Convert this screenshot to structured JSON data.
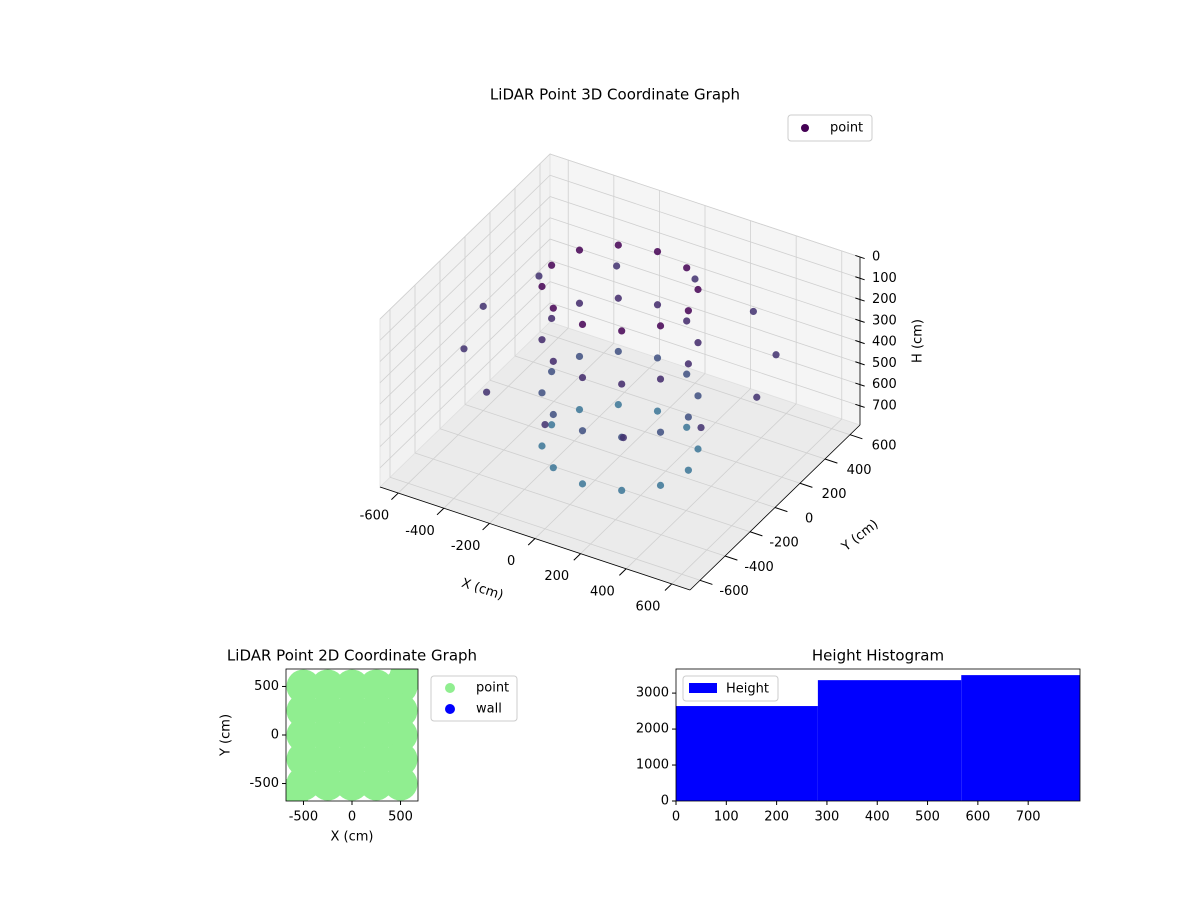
{
  "chart_data": [
    {
      "type": "scatter3d",
      "title": "LiDAR Point 3D Coordinate Graph",
      "x_label": "X (cm)",
      "y_label": "Y (cm)",
      "z_label": "H (cm)",
      "xlim": [
        -680,
        680
      ],
      "ylim": [
        -680,
        680
      ],
      "zlim": [
        0,
        790
      ],
      "z_inverted": true,
      "xticks": [
        -600,
        -400,
        -200,
        0,
        200,
        400,
        600
      ],
      "yticks": [
        -600,
        -400,
        -200,
        0,
        200,
        400,
        600
      ],
      "zticks": [
        0,
        100,
        200,
        300,
        400,
        500,
        600,
        700
      ],
      "legend": "upper right",
      "series": [
        {
          "name": "point",
          "color": "#440154",
          "colormap": [
            "#440154",
            "#3b7c99"
          ],
          "x": [
            300,
            260,
            150,
            0,
            -150,
            -260,
            -300,
            -260,
            -150,
            0,
            150,
            260,
            300,
            260,
            150,
            0,
            -150,
            -260,
            -300,
            -260,
            -150,
            0,
            150,
            260,
            300,
            260,
            150,
            0,
            -150,
            -260,
            -300,
            -260,
            -150,
            0,
            150,
            260,
            300,
            260,
            150,
            0,
            -150,
            -260,
            -300,
            -260,
            -150,
            0,
            150,
            260,
            600,
            520,
            300,
            0,
            -300,
            -520,
            -600,
            -520,
            -300,
            0,
            300,
            520
          ],
          "y": [
            0,
            150,
            260,
            300,
            260,
            150,
            0,
            -150,
            -260,
            -300,
            -260,
            -150,
            0,
            150,
            260,
            300,
            260,
            150,
            0,
            -150,
            -260,
            -300,
            -260,
            -150,
            0,
            150,
            260,
            300,
            260,
            150,
            0,
            -150,
            -260,
            -300,
            -260,
            -150,
            0,
            150,
            260,
            300,
            260,
            150,
            0,
            -150,
            -260,
            -300,
            -260,
            -150,
            0,
            300,
            520,
            600,
            520,
            300,
            0,
            -300,
            -520,
            -600,
            -520,
            -300
          ],
          "z": [
            0,
            0,
            0,
            0,
            0,
            0,
            0,
            0,
            0,
            0,
            0,
            0,
            250,
            250,
            250,
            250,
            250,
            250,
            250,
            250,
            250,
            250,
            250,
            250,
            500,
            500,
            500,
            500,
            500,
            500,
            500,
            500,
            500,
            500,
            500,
            500,
            750,
            750,
            750,
            750,
            750,
            750,
            750,
            750,
            750,
            750,
            750,
            750,
            300,
            300,
            300,
            300,
            300,
            300,
            300,
            300,
            300,
            300,
            300,
            300
          ]
        }
      ]
    },
    {
      "type": "scatter",
      "title": "LiDAR Point 2D Coordinate Graph",
      "x_label": "X (cm)",
      "y_label": "Y (cm)",
      "xlim": [
        -680,
        680
      ],
      "ylim": [
        -680,
        680
      ],
      "xticks": [
        -500,
        0,
        500
      ],
      "yticks": [
        -500,
        0,
        500
      ],
      "legend": "outside right",
      "series": [
        {
          "name": "point",
          "color": "#90ee90",
          "x": [
            -500,
            -250,
            0,
            250,
            500,
            -500,
            -250,
            0,
            250,
            500,
            -500,
            -250,
            0,
            250,
            500,
            -500,
            -250,
            0,
            250,
            500,
            -500,
            -250,
            0,
            250,
            500,
            620,
            560,
            -620
          ],
          "y": [
            500,
            500,
            500,
            500,
            500,
            250,
            250,
            250,
            250,
            250,
            0,
            0,
            0,
            0,
            0,
            -250,
            -250,
            -250,
            -250,
            -250,
            -500,
            -500,
            -500,
            -500,
            -500,
            640,
            600,
            -620
          ]
        },
        {
          "name": "wall",
          "color": "#0000ff",
          "x": [],
          "y": []
        }
      ]
    },
    {
      "type": "histogram",
      "title": "Height Histogram",
      "bins": [
        0,
        282,
        567,
        803
      ],
      "series": [
        {
          "name": "Height",
          "color": "#0000ff",
          "values": [
            2640,
            3360,
            3500
          ]
        }
      ],
      "xlim": [
        0,
        803
      ],
      "ylim": [
        0,
        3670
      ],
      "xticks": [
        0,
        100,
        200,
        300,
        400,
        500,
        600,
        700
      ],
      "yticks": [
        0,
        1000,
        2000,
        3000
      ],
      "legend": "upper left"
    }
  ]
}
